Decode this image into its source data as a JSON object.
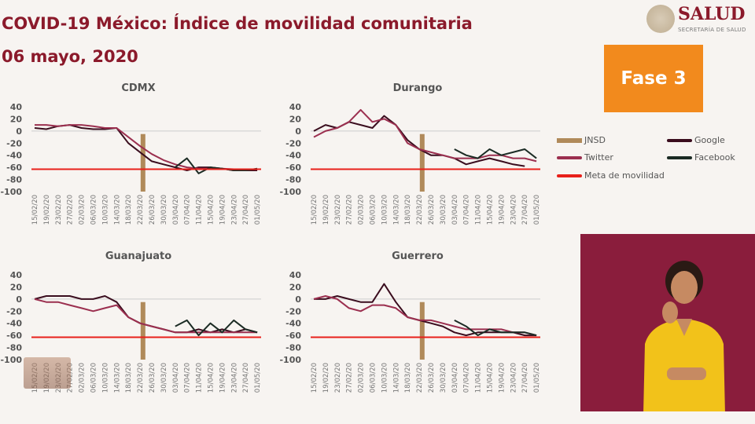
{
  "header": {
    "title": "COVID-19 México: Índice de movilidad comunitaria",
    "date": "06 mayo, 2020",
    "logo_text": "SALUD",
    "logo_subtext": "SECRETARÍA DE SALUD",
    "phase_badge": "Fase 3"
  },
  "colors": {
    "jnsd": "#b08a5a",
    "google": "#3a0d1e",
    "twitter": "#9b2f4f",
    "facebook": "#1b2b24",
    "meta": "#e8201a",
    "title": "#8b1a2b",
    "badge": "#f28a1d"
  },
  "legend": [
    {
      "key": "jnsd",
      "label": "JNSD"
    },
    {
      "key": "google",
      "label": "Google"
    },
    {
      "key": "twitter",
      "label": "Twitter"
    },
    {
      "key": "facebook",
      "label": "Facebook"
    },
    {
      "key": "meta",
      "label": "Meta de movilidad"
    }
  ],
  "chart_data": [
    {
      "type": "line",
      "title": "CDMX",
      "ylim": [
        -100,
        40
      ],
      "yticks": [
        "40",
        "20",
        "0",
        "-20",
        "-40",
        "-60",
        "-80",
        "-100"
      ],
      "categories": [
        "15/02/20",
        "19/02/20",
        "23/02/20",
        "27/02/20",
        "02/03/20",
        "06/03/20",
        "10/03/20",
        "14/03/20",
        "18/03/20",
        "22/03/20",
        "26/03/20",
        "30/03/20",
        "03/04/20",
        "07/04/20",
        "11/04/20",
        "15/04/20",
        "19/04/20",
        "23/04/20",
        "27/04/20",
        "01/05/20"
      ],
      "jnsd_index": 9.25,
      "meta": -63,
      "series": [
        {
          "name": "Google",
          "values": [
            5,
            3,
            8,
            10,
            5,
            3,
            3,
            5,
            -20,
            -35,
            -50,
            -55,
            -60,
            -65,
            -60,
            -60,
            -62,
            -65,
            -65,
            -65
          ]
        },
        {
          "name": "Twitter",
          "values": [
            10,
            10,
            8,
            10,
            10,
            8,
            5,
            5,
            -10,
            -25,
            -38,
            -48,
            -55,
            -60,
            -62,
            -62,
            -62,
            -63,
            -63,
            -63
          ]
        },
        {
          "name": "Facebook",
          "values": [
            null,
            null,
            null,
            null,
            null,
            null,
            null,
            null,
            null,
            null,
            null,
            null,
            -60,
            -45,
            -70,
            -60,
            -62,
            -65,
            -65,
            -62
          ]
        }
      ]
    },
    {
      "type": "line",
      "title": "Durango",
      "ylim": [
        -100,
        40
      ],
      "yticks": [
        "40",
        "20",
        "0",
        "-20",
        "-40",
        "-60",
        "-80",
        "-100"
      ],
      "categories": [
        "15/02/20",
        "19/02/20",
        "23/02/20",
        "27/02/20",
        "02/03/20",
        "06/03/20",
        "10/03/20",
        "14/03/20",
        "18/03/20",
        "22/03/20",
        "26/03/20",
        "30/03/20",
        "03/04/20",
        "07/04/20",
        "11/04/20",
        "15/04/20",
        "19/04/20",
        "23/04/20",
        "27/04/20",
        "01/05/20"
      ],
      "jnsd_index": 9.25,
      "meta": -63,
      "series": [
        {
          "name": "Google",
          "values": [
            0,
            10,
            5,
            15,
            10,
            5,
            25,
            10,
            -15,
            -30,
            -40,
            -40,
            -45,
            -55,
            -50,
            -45,
            -50,
            -55,
            -58,
            null
          ]
        },
        {
          "name": "Twitter",
          "values": [
            -10,
            0,
            5,
            15,
            35,
            15,
            20,
            10,
            -20,
            -30,
            -35,
            -40,
            -45,
            -45,
            -45,
            -40,
            -40,
            -45,
            -45,
            -50
          ]
        },
        {
          "name": "Facebook",
          "values": [
            null,
            null,
            null,
            null,
            null,
            null,
            null,
            null,
            null,
            null,
            null,
            null,
            -30,
            -40,
            -45,
            -30,
            -40,
            -35,
            -30,
            -45
          ]
        }
      ]
    },
    {
      "type": "line",
      "title": "Guanajuato",
      "ylim": [
        -100,
        40
      ],
      "yticks": [
        "40",
        "20",
        "0",
        "-20",
        "-40",
        "-60",
        "-80",
        "-100"
      ],
      "categories": [
        "15/02/20",
        "19/02/20",
        "23/02/20",
        "27/02/20",
        "02/03/20",
        "06/03/20",
        "10/03/20",
        "14/03/20",
        "18/03/20",
        "22/03/20",
        "26/03/20",
        "30/03/20",
        "03/04/20",
        "07/04/20",
        "11/04/20",
        "15/04/20",
        "19/04/20",
        "23/04/20",
        "27/04/20",
        "01/05/20"
      ],
      "jnsd_index": 9.25,
      "meta": -63,
      "series": [
        {
          "name": "Google",
          "values": [
            0,
            5,
            5,
            5,
            0,
            0,
            5,
            -5,
            -30,
            -40,
            -45,
            -50,
            -55,
            -55,
            -50,
            -55,
            -50,
            -55,
            -50,
            -55
          ]
        },
        {
          "name": "Twitter",
          "values": [
            0,
            -5,
            -5,
            -10,
            -15,
            -20,
            -15,
            -10,
            -30,
            -40,
            -45,
            -50,
            -55,
            -55,
            -55,
            -55,
            -55,
            -55,
            -55,
            -55
          ]
        },
        {
          "name": "Facebook",
          "values": [
            null,
            null,
            null,
            null,
            null,
            null,
            null,
            null,
            null,
            null,
            null,
            null,
            -45,
            -35,
            -60,
            -40,
            -55,
            -35,
            -50,
            -55
          ]
        }
      ]
    },
    {
      "type": "line",
      "title": "Guerrero",
      "ylim": [
        -100,
        40
      ],
      "yticks": [
        "40",
        "20",
        "0",
        "-20",
        "-40",
        "-60",
        "-80",
        "-100"
      ],
      "categories": [
        "15/02/20",
        "19/02/20",
        "23/02/20",
        "27/02/20",
        "02/03/20",
        "06/03/20",
        "10/03/20",
        "14/03/20",
        "18/03/20",
        "22/03/20",
        "26/03/20",
        "30/03/20",
        "03/04/20",
        "07/04/20",
        "11/04/20",
        "15/04/20",
        "19/04/20",
        "23/04/20",
        "27/04/20",
        "01/05/20"
      ],
      "jnsd_index": 9.25,
      "meta": -63,
      "series": [
        {
          "name": "Google",
          "values": [
            0,
            0,
            5,
            0,
            -5,
            -5,
            25,
            -5,
            -30,
            -35,
            -40,
            -45,
            -55,
            -60,
            -55,
            -55,
            -55,
            -55,
            -60,
            -60
          ]
        },
        {
          "name": "Twitter",
          "values": [
            0,
            5,
            0,
            -15,
            -20,
            -10,
            -10,
            -15,
            -30,
            -35,
            -35,
            -40,
            -45,
            -50,
            -50,
            -50,
            -50,
            -55,
            -55,
            -60
          ]
        },
        {
          "name": "Facebook",
          "values": [
            null,
            null,
            null,
            null,
            null,
            null,
            null,
            null,
            null,
            null,
            null,
            null,
            -35,
            -45,
            -60,
            -50,
            -55,
            -55,
            -55,
            -60
          ]
        }
      ]
    }
  ]
}
